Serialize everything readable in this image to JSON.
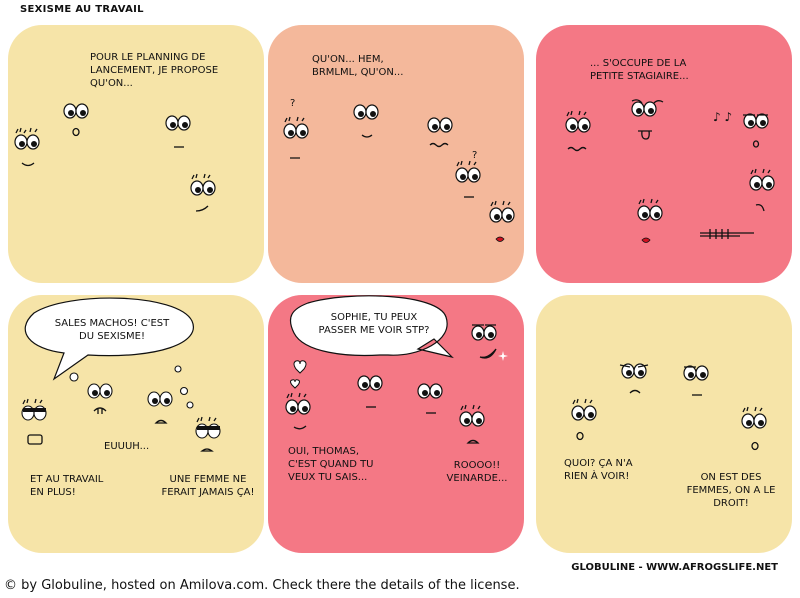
{
  "comic_title": "SEXISME AU TRAVAIL",
  "colors": {
    "yellow": "#f6e4a8",
    "peach": "#f4b89b",
    "pink": "#f47885",
    "ink": "#111111",
    "lips": "#d01020"
  },
  "panels": [
    {
      "text": "POUR LE PLANNING DE LANCEMENT, JE PROPOSE QU'ON..."
    },
    {
      "text": "QU'ON... HEM, BRMLML, QU'ON...",
      "marks": [
        "?",
        "?"
      ]
    },
    {
      "text": "... S'OCCUPE DE LA PETITE STAGIAIRE...",
      "marks": [
        "♪ ♪"
      ]
    },
    {
      "bubble": "SALES MACHOS! C'EST DU SEXISME!",
      "texts": [
        "EUUUH...",
        "ET AU TRAVAIL EN PLUS!",
        "UNE FEMME NE FERAIT JAMAIS ÇA!"
      ]
    },
    {
      "bubble": "SOPHIE, TU PEUX PASSER ME VOIR STP?",
      "texts": [
        "OUI, THOMAS, C'EST QUAND TU VEUX TU SAIS...",
        "ROOOO!! VEINARDE..."
      ]
    },
    {
      "texts": [
        "QUOI? ÇA N'A RIEN À VOIR!",
        "ON EST DES FEMMES, ON A LE DROIT!"
      ]
    }
  ],
  "credit": "GLOBULINE - WWW.AFROGSLIFE.NET",
  "footer": "© by Globuline, hosted on Amilova.com. Check there the details of the license."
}
